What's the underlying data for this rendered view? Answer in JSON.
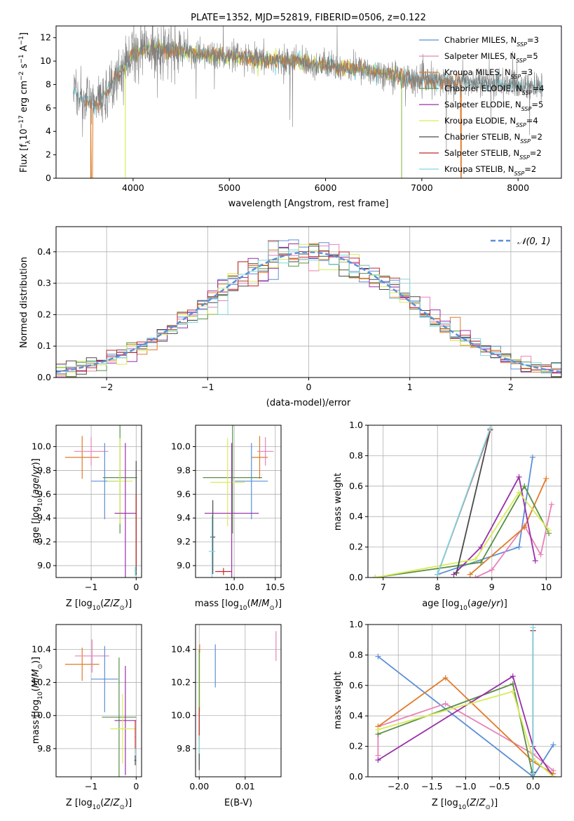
{
  "colors": {
    "chabrier_miles": "#5b8fd8",
    "salpeter_miles": "#e882b8",
    "kroupa_miles": "#e07b2a",
    "chabrier_elodie": "#5a8f45",
    "salpeter_elodie": "#9a2fa8",
    "kroupa_elodie": "#d7ec5a",
    "chabrier_stelib": "#4a4a4a",
    "salpeter_stelib": "#c22a2a",
    "kroupa_stelib": "#7fd8e0",
    "reference": "#5b8fd8",
    "data": "#808080"
  },
  "chart_data": [
    {
      "id": "spectrum",
      "type": "line",
      "title": "PLATE=1352, MJD=52819, FIBERID=0506, z=0.122",
      "xlabel": "wavelength [Angstrom, rest frame]",
      "ylabel": "Flux [fλ10⁻¹⁷ erg cm⁻² s⁻¹ A⁻¹]",
      "xlim": [
        3200,
        8450
      ],
      "ylim": [
        0,
        13
      ],
      "xticks": [
        "4000",
        "5000",
        "6000",
        "7000",
        "8000"
      ],
      "yticks": [
        "0",
        "2",
        "4",
        "6",
        "8",
        "10",
        "12"
      ],
      "legend_position": "top-right",
      "legend": [
        "Chabrier MILES, N_SSP=3",
        "Salpeter MILES, N_SSP=5",
        "Kroupa MILES, N_SSP=3",
        "Chabrier ELODIE, N_SSP=4",
        "Salpeter ELODIE, N_SSP=5",
        "Kroupa ELODIE, N_SSP=4",
        "Chabrier STELIB, N_SSP=2",
        "Salpeter STELIB, N_SSP=2",
        "Kroupa STELIB, N_SSP=2"
      ],
      "continuum_x": [
        3400,
        3500,
        3600,
        3700,
        3800,
        3900,
        4000,
        4100,
        4300,
        4500,
        4700,
        4900,
        5100,
        5300,
        5500,
        5700,
        5900,
        6100,
        6300,
        6500,
        6700,
        6900,
        7100,
        7300,
        7500,
        7700,
        7900,
        8100,
        8250
      ],
      "continuum_y": [
        7.3,
        6.8,
        6.3,
        7.0,
        8.5,
        9.4,
        10.6,
        11.0,
        11.1,
        10.8,
        10.6,
        10.4,
        10.3,
        10.1,
        10.0,
        10.0,
        9.7,
        9.5,
        9.4,
        9.1,
        8.9,
        8.4,
        8.3,
        8.2,
        8.2,
        8.1,
        8.0,
        7.8,
        7.7
      ],
      "data_noise": 1.8,
      "model_sources": {
        "kroupa_stelib": [
          3380,
          8250
        ],
        "kroupa_elodie": [
          3900,
          6800
        ],
        "kroupa_miles": [
          3500,
          7410
        ]
      },
      "dropouts": [
        3560,
        3920,
        6790,
        7410
      ]
    },
    {
      "id": "residuals",
      "type": "histogram",
      "xlabel": "(data-model)/error",
      "ylabel": "Normed distribution",
      "xlim": [
        -2.5,
        2.5
      ],
      "ylim": [
        0,
        0.48
      ],
      "xticks": [
        "−2",
        "−1",
        "0",
        "1",
        "2"
      ],
      "yticks": [
        "0.0",
        "0.1",
        "0.2",
        "0.3",
        "0.4"
      ],
      "grid": true,
      "bin_width": 0.1,
      "legend_label": "𝒩(0, 1)",
      "legend_position": "top-right"
    },
    {
      "id": "age_vs_z",
      "type": "errorbar",
      "xlabel": "Z [log₁₀(Z/Z⊙)]",
      "ylabel": "age  [log₁₀(age/yr)]",
      "xlim": [
        -1.78,
        0.12
      ],
      "ylim": [
        8.9,
        10.18
      ],
      "xticks": [
        "−1",
        "0"
      ],
      "xtick_vals": [
        -1,
        0
      ],
      "yticks": [
        "9.0",
        "9.2",
        "9.4",
        "9.6",
        "9.8",
        "10.0"
      ],
      "ytick_vals": [
        9.0,
        9.2,
        9.4,
        9.6,
        9.8,
        10.0
      ],
      "grid": true,
      "points": [
        {
          "model": "kroupa_miles",
          "x": -1.2,
          "xerr": 0.38,
          "y": 9.91,
          "yerr": 0.18
        },
        {
          "model": "salpeter_miles",
          "x": -1.0,
          "xerr": 0.38,
          "y": 9.96,
          "yerr": 0.12
        },
        {
          "model": "chabrier_miles",
          "x": -0.7,
          "xerr": 0.3,
          "y": 9.71,
          "yerr": 0.32
        },
        {
          "model": "chabrier_elodie",
          "x": -0.36,
          "xerr": 0.38,
          "y": 9.74,
          "yerr": 0.47
        },
        {
          "model": "kroupa_elodie",
          "x": -0.36,
          "xerr": 0.28,
          "y": 9.71,
          "yerr": 0.36
        },
        {
          "model": "salpeter_elodie",
          "x": -0.24,
          "xerr": 0.24,
          "y": 9.44,
          "yerr": 0.59
        },
        {
          "model": "chabrier_stelib",
          "x": 0.0,
          "xerr": 0.01,
          "y": 9.4,
          "yerr": 0.48
        },
        {
          "model": "salpeter_stelib",
          "x": 0.0,
          "xerr": 0.01,
          "y": 9.3,
          "yerr": 0.3
        },
        {
          "model": "kroupa_stelib",
          "x": -0.02,
          "xerr": 0.02,
          "y": 8.95,
          "yerr": 0.04
        }
      ]
    },
    {
      "id": "age_vs_mass",
      "type": "errorbar",
      "xlabel": "mass [log₁₀(M/M⊙)]",
      "xlim": [
        9.53,
        10.57
      ],
      "ylim": [
        8.9,
        10.18
      ],
      "xticks": [
        "10.0",
        "10.5"
      ],
      "xtick_vals": [
        10.0,
        10.5
      ],
      "yticks": [
        "9.0",
        "9.2",
        "9.4",
        "9.6",
        "9.8",
        "10.0"
      ],
      "ytick_vals": [
        9.0,
        9.2,
        9.4,
        9.6,
        9.8,
        10.0
      ],
      "grid": true,
      "points": [
        {
          "model": "kroupa_miles",
          "x": 10.31,
          "xerr": 0.1,
          "y": 9.91,
          "yerr": 0.18
        },
        {
          "model": "salpeter_miles",
          "x": 10.38,
          "xerr": 0.1,
          "y": 9.96,
          "yerr": 0.12
        },
        {
          "model": "chabrier_miles",
          "x": 10.21,
          "xerr": 0.2,
          "y": 9.71,
          "yerr": 0.32
        },
        {
          "model": "chabrier_elodie",
          "x": 9.98,
          "xerr": 0.36,
          "y": 9.74,
          "yerr": 0.47
        },
        {
          "model": "kroupa_elodie",
          "x": 9.92,
          "xerr": 0.21,
          "y": 9.7,
          "yerr": 0.37
        },
        {
          "model": "salpeter_elodie",
          "x": 9.97,
          "xerr": 0.33,
          "y": 9.44,
          "yerr": 0.59
        },
        {
          "model": "chabrier_stelib",
          "x": 9.74,
          "xerr": 0.03,
          "y": 9.24,
          "yerr": 0.31
        },
        {
          "model": "salpeter_stelib",
          "x": 9.87,
          "xerr": 0.1,
          "y": 8.95,
          "yerr": 0.03
        },
        {
          "model": "kroupa_stelib",
          "x": 9.73,
          "xerr": 0.04,
          "y": 9.12,
          "yerr": 0.3
        }
      ]
    },
    {
      "id": "mass_weight_vs_age",
      "type": "line",
      "xlabel": "age  [log₁₀(age/yr)]",
      "ylabel": "mass weight",
      "xlim": [
        6.72,
        10.28
      ],
      "ylim": [
        0,
        1.0
      ],
      "xticks": [
        "7",
        "8",
        "9",
        "10"
      ],
      "xtick_vals": [
        7,
        8,
        9,
        10
      ],
      "yticks": [
        "0.0",
        "0.2",
        "0.4",
        "0.6",
        "0.8",
        "1.0"
      ],
      "ytick_vals": [
        0,
        0.2,
        0.4,
        0.6,
        0.8,
        1.0
      ],
      "grid": true,
      "series": [
        {
          "model": "chabrier_miles",
          "x": [
            8.0,
            9.5,
            9.75
          ],
          "y": [
            0.02,
            0.2,
            0.79
          ]
        },
        {
          "model": "salpeter_miles",
          "x": [
            8.7,
            9.0,
            9.6,
            9.9,
            10.1
          ],
          "y": [
            0.0,
            0.05,
            0.34,
            0.15,
            0.48
          ]
        },
        {
          "model": "kroupa_miles",
          "x": [
            8.6,
            9.6,
            10.0
          ],
          "y": [
            0.02,
            0.33,
            0.65
          ]
        },
        {
          "model": "chabrier_elodie",
          "x": [
            6.85,
            8.8,
            9.6,
            10.05
          ],
          "y": [
            0.0,
            0.1,
            0.6,
            0.29
          ]
        },
        {
          "model": "salpeter_elodie",
          "x": [
            8.3,
            8.8,
            9.5,
            9.8
          ],
          "y": [
            0.02,
            0.2,
            0.66,
            0.11
          ]
        },
        {
          "model": "kroupa_elodie",
          "x": [
            6.85,
            8.7,
            9.5,
            10.05
          ],
          "y": [
            0.0,
            0.12,
            0.56,
            0.31
          ]
        },
        {
          "model": "chabrier_stelib",
          "x": [
            8.35,
            8.97
          ],
          "y": [
            0.03,
            0.97
          ]
        },
        {
          "model": "salpeter_stelib",
          "x": [
            8.0,
            8.97
          ],
          "y": [
            0.02,
            0.97
          ]
        },
        {
          "model": "kroupa_stelib",
          "x": [
            8.0,
            8.97
          ],
          "y": [
            0.02,
            0.98
          ]
        }
      ]
    },
    {
      "id": "mass_vs_z",
      "type": "errorbar",
      "xlabel": "Z [log₁₀(Z/Z⊙)]",
      "ylabel": "mass [log₁₀(M/M⊙)]",
      "xlim": [
        -1.78,
        0.12
      ],
      "ylim": [
        9.63,
        10.55
      ],
      "xticks": [
        "−1",
        "0"
      ],
      "xtick_vals": [
        -1,
        0
      ],
      "yticks": [
        "9.8",
        "10.0",
        "10.2",
        "10.4"
      ],
      "ytick_vals": [
        9.8,
        10.0,
        10.2,
        10.4
      ],
      "grid": true,
      "points": [
        {
          "model": "kroupa_miles",
          "x": -1.2,
          "xerr": 0.38,
          "y": 10.31,
          "yerr": 0.1
        },
        {
          "model": "salpeter_miles",
          "x": -0.98,
          "xerr": 0.38,
          "y": 10.36,
          "yerr": 0.1
        },
        {
          "model": "chabrier_miles",
          "x": -0.7,
          "xerr": 0.3,
          "y": 10.22,
          "yerr": 0.2
        },
        {
          "model": "chabrier_elodie",
          "x": -0.38,
          "xerr": 0.38,
          "y": 9.99,
          "yerr": 0.36
        },
        {
          "model": "salpeter_elodie",
          "x": -0.24,
          "xerr": 0.24,
          "y": 9.97,
          "yerr": 0.33
        },
        {
          "model": "kroupa_elodie",
          "x": -0.3,
          "xerr": 0.28,
          "y": 9.92,
          "yerr": 0.21
        },
        {
          "model": "salpeter_stelib",
          "x": -0.02,
          "xerr": 0.01,
          "y": 9.87,
          "yerr": 0.1
        },
        {
          "model": "kroupa_stelib",
          "x": -0.02,
          "xerr": 0.02,
          "y": 9.75,
          "yerr": 0.05
        },
        {
          "model": "chabrier_stelib",
          "x": -0.02,
          "xerr": 0.02,
          "y": 9.73,
          "yerr": 0.03
        }
      ]
    },
    {
      "id": "mass_vs_ebv",
      "type": "errorbar",
      "xlabel": "E(B-V)",
      "xlim": [
        -0.0008,
        0.0178
      ],
      "ylim": [
        9.63,
        10.55
      ],
      "xticks": [
        "0.00",
        "0.01"
      ],
      "xtick_vals": [
        0.0,
        0.01
      ],
      "yticks": [
        "9.8",
        "10.0",
        "10.2",
        "10.4"
      ],
      "ytick_vals": [
        9.8,
        10.0,
        10.2,
        10.4
      ],
      "grid": true,
      "points": [
        {
          "model": "salpeter_miles",
          "x": 0.0167,
          "xerr": 0.0,
          "y": 10.42,
          "yerr": 0.09
        },
        {
          "model": "chabrier_miles",
          "x": 0.0035,
          "xerr": 0.0,
          "y": 10.3,
          "yerr": 0.13
        },
        {
          "model": "kroupa_miles",
          "x": 0.0001,
          "xerr": 0.0,
          "y": 10.36,
          "yerr": 0.07
        },
        {
          "model": "kroupa_elodie",
          "x": 0.0001,
          "xerr": 0.0,
          "y": 10.2,
          "yerr": 0.18
        },
        {
          "model": "chabrier_elodie",
          "x": 0.0,
          "xerr": 0.0,
          "y": 10.05,
          "yerr": 0.35
        },
        {
          "model": "salpeter_stelib",
          "x": 0.0,
          "xerr": 0.0,
          "y": 9.95,
          "yerr": 0.1
        },
        {
          "model": "kroupa_stelib",
          "x": 0.0,
          "xerr": 0.0,
          "y": 9.79,
          "yerr": 0.09
        },
        {
          "model": "chabrier_stelib",
          "x": 0.0,
          "xerr": 0.0,
          "y": 9.72,
          "yerr": 0.05
        }
      ]
    },
    {
      "id": "mass_weight_vs_z",
      "type": "line",
      "xlabel": "Z [log₁₀(Z/Z⊙)]",
      "ylabel": "mass weight",
      "xlim": [
        -2.45,
        0.42
      ],
      "ylim": [
        0,
        1.0
      ],
      "xticks": [
        "−2.0",
        "−1.5",
        "−1.0",
        "−0.5",
        "0.0"
      ],
      "xtick_vals": [
        -2.0,
        -1.5,
        -1.0,
        -0.5,
        0.0
      ],
      "yticks": [
        "0.0",
        "0.2",
        "0.4",
        "0.6",
        "0.8",
        "1.0"
      ],
      "ytick_vals": [
        0,
        0.2,
        0.4,
        0.6,
        0.8,
        1.0
      ],
      "grid": true,
      "series": [
        {
          "model": "chabrier_miles",
          "x": [
            -2.3,
            0.0,
            0.3
          ],
          "y": [
            0.79,
            0.0,
            0.21
          ]
        },
        {
          "model": "salpeter_miles",
          "x": [
            -2.3,
            -2.3,
            -1.3,
            0.0,
            0.3
          ],
          "y": [
            0.14,
            0.33,
            0.48,
            0.15,
            0.04
          ]
        },
        {
          "model": "kroupa_miles",
          "x": [
            -2.3,
            -1.3,
            0.0,
            0.3
          ],
          "y": [
            0.33,
            0.65,
            0.1,
            0.02
          ]
        },
        {
          "model": "chabrier_elodie",
          "x": [
            -2.3,
            -0.3,
            0.0,
            0.3
          ],
          "y": [
            0.28,
            0.61,
            0.0,
            0.0
          ]
        },
        {
          "model": "salpeter_elodie",
          "x": [
            -2.3,
            -0.3,
            0.0,
            0.3
          ],
          "y": [
            0.11,
            0.66,
            0.2,
            0.0
          ]
        },
        {
          "model": "kroupa_elodie",
          "x": [
            -2.3,
            -0.3,
            0.0,
            0.3
          ],
          "y": [
            0.31,
            0.56,
            0.12,
            0.0
          ]
        },
        {
          "model": "chabrier_stelib",
          "x": [
            0.0,
            0.0
          ],
          "y": [
            0.03,
            0.96
          ]
        },
        {
          "model": "salpeter_stelib",
          "x": [
            0.0,
            0.0
          ],
          "y": [
            0.02,
            0.96
          ]
        },
        {
          "model": "kroupa_stelib",
          "x": [
            0.0,
            0.0
          ],
          "y": [
            0.02,
            0.98
          ]
        }
      ]
    }
  ]
}
